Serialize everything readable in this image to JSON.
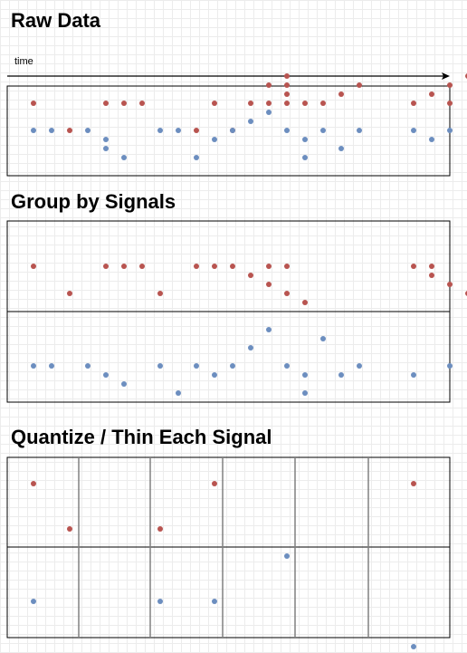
{
  "headings": {
    "raw": "Raw Data",
    "group": "Group by Signals",
    "quantize": "Quantize / Thin Each Signal"
  },
  "axis": {
    "label": "time"
  },
  "colors": {
    "red": "#b85450",
    "blue": "#6c8ebf",
    "border": "#000000",
    "quantize_line": "#808080"
  },
  "chart_data": {
    "type": "scatter",
    "x_units": "time",
    "raw": {
      "red": [
        [
          1,
          3
        ],
        [
          3,
          0
        ],
        [
          5,
          3
        ],
        [
          6,
          3
        ],
        [
          7,
          3
        ],
        [
          10,
          0
        ],
        [
          11,
          3
        ],
        [
          12,
          0
        ],
        [
          13,
          3
        ],
        [
          14,
          3
        ],
        [
          15,
          3
        ],
        [
          15,
          4
        ],
        [
          15,
          5
        ],
        [
          14,
          5
        ],
        [
          15,
          6
        ],
        [
          16,
          3
        ],
        [
          17,
          3
        ],
        [
          18,
          4
        ],
        [
          19,
          5
        ],
        [
          22,
          3
        ],
        [
          23,
          4
        ],
        [
          24,
          3
        ],
        [
          24,
          5
        ],
        [
          25,
          6
        ]
      ],
      "blue": [
        [
          1,
          0
        ],
        [
          2,
          0
        ],
        [
          4,
          0
        ],
        [
          5,
          -1
        ],
        [
          5,
          -2
        ],
        [
          6,
          -3
        ],
        [
          8,
          0
        ],
        [
          9,
          0
        ],
        [
          10,
          -3
        ],
        [
          11,
          -1
        ],
        [
          12,
          0
        ],
        [
          13,
          1
        ],
        [
          14,
          2
        ],
        [
          15,
          0
        ],
        [
          16,
          -1
        ],
        [
          16,
          -3
        ],
        [
          17,
          0
        ],
        [
          18,
          -2
        ],
        [
          19,
          0
        ],
        [
          22,
          0
        ],
        [
          23,
          -1
        ],
        [
          24,
          0
        ]
      ]
    },
    "group": {
      "red": [
        [
          1,
          3
        ],
        [
          3,
          0
        ],
        [
          5,
          3
        ],
        [
          6,
          3
        ],
        [
          7,
          3
        ],
        [
          8,
          0
        ],
        [
          10,
          3
        ],
        [
          11,
          3
        ],
        [
          12,
          3
        ],
        [
          14,
          3
        ],
        [
          15,
          3
        ],
        [
          13,
          2
        ],
        [
          14,
          1
        ],
        [
          15,
          0
        ],
        [
          16,
          -1
        ],
        [
          22,
          3
        ],
        [
          23,
          3
        ],
        [
          23,
          2
        ],
        [
          24,
          1
        ],
        [
          25,
          0
        ]
      ],
      "blue": [
        [
          1,
          0
        ],
        [
          2,
          0
        ],
        [
          4,
          0
        ],
        [
          5,
          -1
        ],
        [
          6,
          -2
        ],
        [
          8,
          0
        ],
        [
          9,
          -3
        ],
        [
          10,
          0
        ],
        [
          11,
          -1
        ],
        [
          12,
          0
        ],
        [
          13,
          2
        ],
        [
          14,
          4
        ],
        [
          15,
          0
        ],
        [
          16,
          -3
        ],
        [
          16,
          -1
        ],
        [
          17,
          3
        ],
        [
          18,
          -1
        ],
        [
          19,
          0
        ],
        [
          22,
          -1
        ],
        [
          24,
          0
        ]
      ]
    },
    "quantize": {
      "bins": 6,
      "red": [
        [
          1,
          1
        ],
        [
          3,
          0
        ],
        [
          8,
          0
        ],
        [
          11,
          1
        ],
        [
          22,
          1
        ]
      ],
      "blue": [
        [
          1,
          0
        ],
        [
          8,
          0
        ],
        [
          11,
          0
        ],
        [
          15,
          1
        ],
        [
          22,
          -1
        ]
      ]
    }
  }
}
